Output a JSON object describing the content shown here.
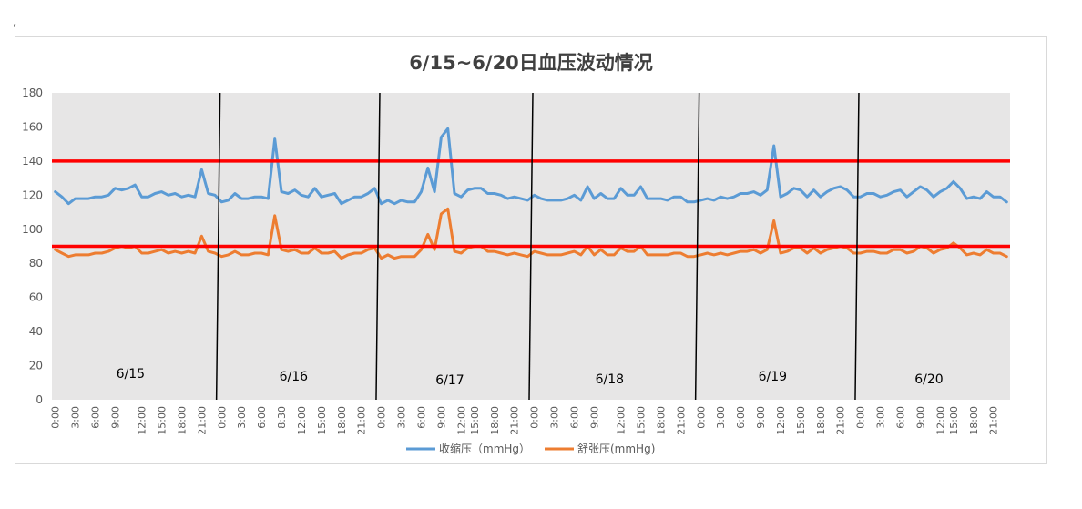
{
  "stray_mark": ",",
  "chart_data": {
    "type": "line",
    "title": "6/15~6/20日血压波动情况",
    "xlabel": "",
    "ylabel": "",
    "ylim": [
      0,
      180
    ],
    "yticks": [
      0,
      20,
      40,
      60,
      80,
      100,
      120,
      140,
      160,
      180
    ],
    "grid": false,
    "legend_position": "bottom",
    "reference_lines": [
      {
        "value": 140,
        "color": "#ff0000"
      },
      {
        "value": 90,
        "color": "#ff0000"
      }
    ],
    "day_labels": [
      "6/15",
      "6/16",
      "6/17",
      "6/18",
      "6/19",
      "6/20"
    ],
    "x_tick_labels": [
      [
        "0:00",
        "3:00",
        "6:00",
        "9:00",
        "12:00",
        "15:00",
        "18:00",
        "21:00"
      ],
      [
        "0:00",
        "3:00",
        "6:00",
        "8:30",
        "12:00",
        "15:00",
        "18:00",
        "21:00"
      ],
      [
        "0:00",
        "3:00",
        "6:00",
        "9:00",
        "12:00",
        "15:00",
        "18:00",
        "21:00"
      ],
      [
        "0:00",
        "3:00",
        "6:00",
        "9:00",
        "12:00",
        "15:00",
        "18:00",
        "21:00"
      ],
      [
        "0:00",
        "3:00",
        "6:00",
        "9:00",
        "12:00",
        "15:00",
        "18:00",
        "21:00"
      ],
      [
        "0:00",
        "3:00",
        "6:00",
        "9:00",
        "12:00",
        "15:00",
        "18:00",
        "21:00"
      ]
    ],
    "series": [
      {
        "name": "收缩压（mmHg）",
        "color": "#5b9bd5",
        "values": [
          [
            122,
            119,
            115,
            118,
            118,
            118,
            119,
            119,
            120,
            124,
            123,
            124,
            126,
            119,
            119,
            121,
            122,
            120,
            121,
            119,
            120,
            119,
            135,
            121,
            120
          ],
          [
            116,
            117,
            121,
            118,
            118,
            119,
            119,
            118,
            153,
            122,
            121,
            123,
            120,
            119,
            124,
            119,
            120,
            121,
            115,
            117,
            119,
            119,
            121,
            124
          ],
          [
            115,
            117,
            115,
            117,
            116,
            116,
            122,
            136,
            122,
            154,
            159,
            121,
            119,
            123,
            124,
            124,
            121,
            121,
            120,
            118,
            119,
            118,
            117
          ],
          [
            120,
            118,
            117,
            117,
            117,
            118,
            120,
            117,
            125,
            118,
            121,
            118,
            118,
            124,
            120,
            120,
            125,
            118,
            118,
            118,
            117,
            119,
            119,
            116,
            116
          ],
          [
            117,
            118,
            117,
            119,
            118,
            119,
            121,
            121,
            122,
            120,
            123,
            149,
            119,
            121,
            124,
            123,
            119,
            123,
            119,
            122,
            124,
            125,
            123,
            119
          ],
          [
            119,
            121,
            121,
            119,
            120,
            122,
            123,
            119,
            122,
            125,
            123,
            119,
            122,
            124,
            128,
            124,
            118,
            119,
            118,
            122,
            119,
            119,
            116
          ]
        ]
      },
      {
        "name": "舒张压(mmHg)",
        "color": "#ed7d31",
        "values": [
          [
            88,
            86,
            84,
            85,
            85,
            85,
            86,
            86,
            87,
            89,
            90,
            89,
            90,
            86,
            86,
            87,
            88,
            86,
            87,
            86,
            87,
            86,
            96,
            87,
            86
          ],
          [
            84,
            85,
            87,
            85,
            85,
            86,
            86,
            85,
            108,
            88,
            87,
            88,
            86,
            86,
            89,
            86,
            86,
            87,
            83,
            85,
            86,
            86,
            88,
            89
          ],
          [
            83,
            85,
            83,
            84,
            84,
            84,
            88,
            97,
            88,
            109,
            112,
            87,
            86,
            89,
            90,
            90,
            87,
            87,
            86,
            85,
            86,
            85,
            84
          ],
          [
            87,
            86,
            85,
            85,
            85,
            86,
            87,
            85,
            90,
            85,
            88,
            85,
            85,
            89,
            87,
            87,
            90,
            85,
            85,
            85,
            85,
            86,
            86,
            84,
            84
          ],
          [
            85,
            86,
            85,
            86,
            85,
            86,
            87,
            87,
            88,
            86,
            88,
            105,
            86,
            87,
            89,
            89,
            86,
            89,
            86,
            88,
            89,
            90,
            89,
            86
          ],
          [
            86,
            87,
            87,
            86,
            86,
            88,
            88,
            86,
            87,
            90,
            89,
            86,
            88,
            89,
            92,
            89,
            85,
            86,
            85,
            88,
            86,
            86,
            84
          ]
        ]
      }
    ]
  }
}
